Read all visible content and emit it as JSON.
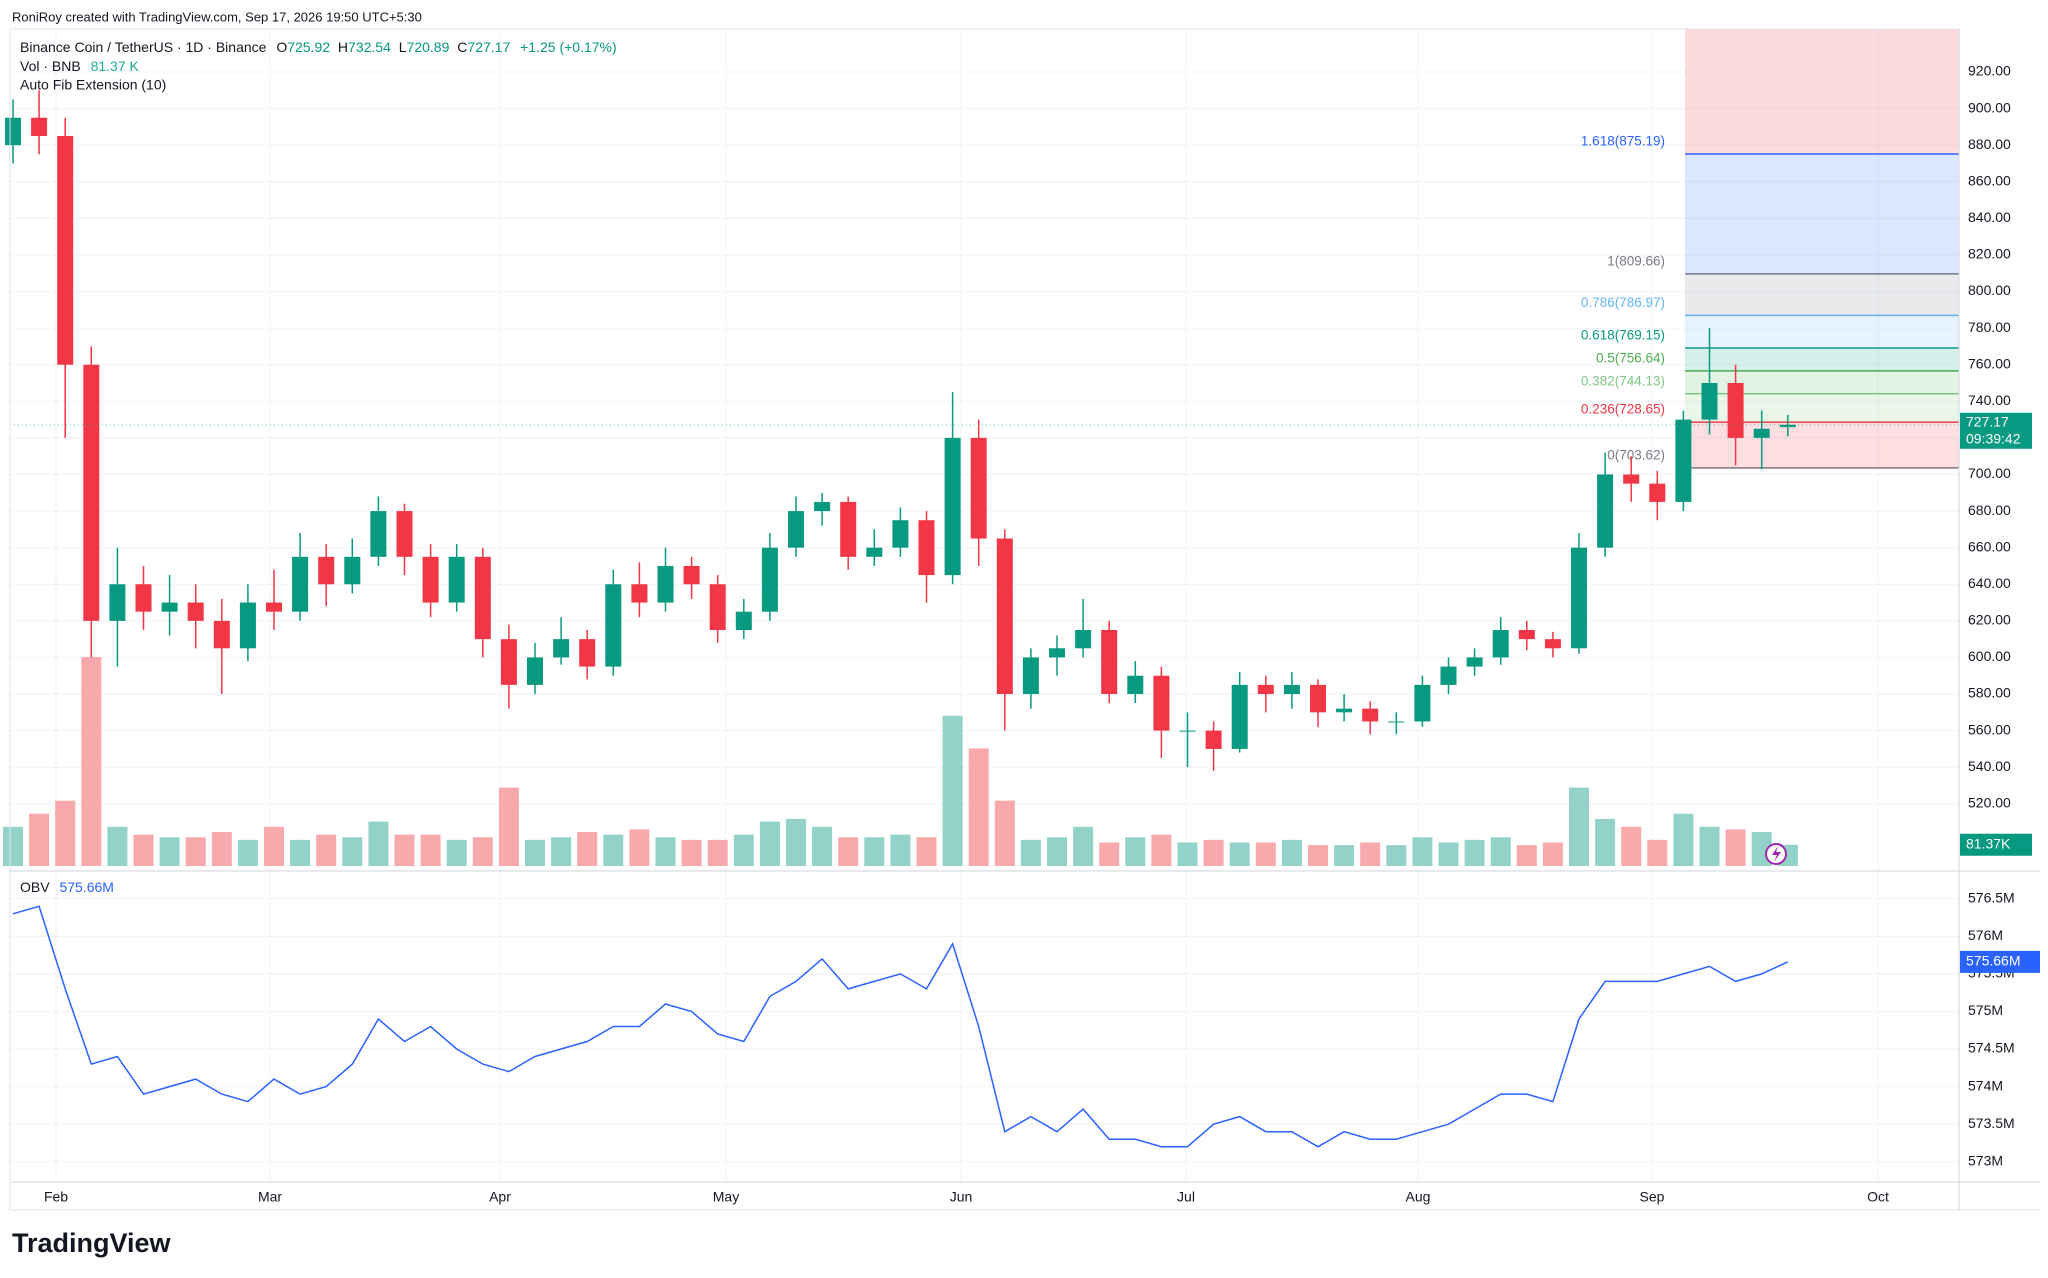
{
  "header": {
    "credit": "RoniRoy created with TradingView.com, Sep 17, 2026 19:50 UTC+5:30",
    "symbol": "Binance Coin / TetherUS · 1D · Binance",
    "o_label": "O",
    "open": 725.92,
    "h_label": "H",
    "high": 732.54,
    "l_label": "L",
    "low": 720.89,
    "c_label": "C",
    "close": 727.17,
    "change": "+1.25 (+0.17%)",
    "vol_name": "Vol · BNB",
    "vol_value": "81.37 K",
    "fib_name": "Auto Fib Extension (10)"
  },
  "footer": {
    "logo": "TradingView"
  },
  "chart_data": [
    {
      "type": "candlestick",
      "up_color": "#089981",
      "down_color": "#f23645",
      "volume_up_color": "#92d2c8",
      "volume_down_color": "#f7a9ac",
      "ylim": [
        486,
        943.5
      ],
      "yticks": [
        {
          "value": 520,
          "label": "520.00"
        },
        {
          "value": 540,
          "label": "540.00"
        },
        {
          "value": 560,
          "label": "560.00"
        },
        {
          "value": 580,
          "label": "580.00"
        },
        {
          "value": 600,
          "label": "600.00"
        },
        {
          "value": 620,
          "label": "620.00"
        },
        {
          "value": 640,
          "label": "640.00"
        },
        {
          "value": 660,
          "label": "660.00"
        },
        {
          "value": 680,
          "label": "680.00"
        },
        {
          "value": 700,
          "label": "700.00"
        },
        {
          "value": 720,
          "label": "720.00"
        },
        {
          "value": 740,
          "label": "740.00"
        },
        {
          "value": 760,
          "label": "760.00"
        },
        {
          "value": 780,
          "label": "780.00"
        },
        {
          "value": 800,
          "label": "800.00"
        },
        {
          "value": 820,
          "label": "820.00"
        },
        {
          "value": 840,
          "label": "840.00"
        },
        {
          "value": 860,
          "label": "860.00"
        },
        {
          "value": 880,
          "label": "880.00"
        },
        {
          "value": 900,
          "label": "900.00"
        },
        {
          "value": 920,
          "label": "920.00"
        }
      ],
      "grid": true,
      "time_labels": [
        "Feb",
        "Mar",
        "Apr",
        "May",
        "Jun",
        "Jul",
        "Aug",
        "Sep",
        "Oct"
      ],
      "candles": [
        [
          880,
          905,
          870,
          895
        ],
        [
          895,
          910,
          875,
          885
        ],
        [
          885,
          895,
          720,
          760
        ],
        [
          760,
          770,
          600,
          620
        ],
        [
          620,
          660,
          595,
          640
        ],
        [
          640,
          650,
          615,
          625
        ],
        [
          625,
          645,
          612,
          630
        ],
        [
          630,
          640,
          605,
          620
        ],
        [
          620,
          632,
          580,
          605
        ],
        [
          605,
          640,
          598,
          630
        ],
        [
          630,
          648,
          615,
          625
        ],
        [
          625,
          668,
          620,
          655
        ],
        [
          655,
          662,
          628,
          640
        ],
        [
          640,
          665,
          635,
          655
        ],
        [
          655,
          688,
          650,
          680
        ],
        [
          680,
          684,
          645,
          655
        ],
        [
          655,
          662,
          622,
          630
        ],
        [
          630,
          662,
          625,
          655
        ],
        [
          655,
          660,
          600,
          610
        ],
        [
          610,
          618,
          572,
          585
        ],
        [
          585,
          608,
          580,
          600
        ],
        [
          600,
          622,
          596,
          610
        ],
        [
          610,
          615,
          588,
          595
        ],
        [
          595,
          648,
          590,
          640
        ],
        [
          640,
          652,
          622,
          630
        ],
        [
          630,
          660,
          625,
          650
        ],
        [
          650,
          655,
          632,
          640
        ],
        [
          640,
          645,
          608,
          615
        ],
        [
          615,
          632,
          610,
          625
        ],
        [
          625,
          668,
          620,
          660
        ],
        [
          660,
          688,
          655,
          680
        ],
        [
          680,
          690,
          672,
          685
        ],
        [
          685,
          688,
          648,
          655
        ],
        [
          655,
          670,
          650,
          660
        ],
        [
          660,
          682,
          655,
          675
        ],
        [
          675,
          680,
          630,
          645
        ],
        [
          645,
          745,
          640,
          720
        ],
        [
          720,
          730,
          650,
          665
        ],
        [
          665,
          670,
          560,
          580
        ],
        [
          580,
          605,
          572,
          600
        ],
        [
          600,
          612,
          590,
          605
        ],
        [
          605,
          632,
          600,
          615
        ],
        [
          615,
          620,
          575,
          580
        ],
        [
          580,
          598,
          575,
          590
        ],
        [
          590,
          595,
          545,
          560
        ],
        [
          560,
          570,
          540,
          560
        ],
        [
          560,
          565,
          538,
          550
        ],
        [
          550,
          592,
          548,
          585
        ],
        [
          585,
          590,
          570,
          580
        ],
        [
          580,
          592,
          572,
          585
        ],
        [
          585,
          588,
          562,
          570
        ],
        [
          570,
          580,
          565,
          572
        ],
        [
          572,
          576,
          558,
          565
        ],
        [
          565,
          570,
          558,
          565
        ],
        [
          565,
          590,
          562,
          585
        ],
        [
          585,
          600,
          580,
          595
        ],
        [
          595,
          605,
          590,
          600
        ],
        [
          600,
          622,
          596,
          615
        ],
        [
          615,
          620,
          604,
          610
        ],
        [
          610,
          614,
          600,
          605
        ],
        [
          605,
          668,
          602,
          660
        ],
        [
          660,
          712,
          655,
          700
        ],
        [
          700,
          710,
          685,
          695
        ],
        [
          695,
          702,
          675,
          685
        ],
        [
          685,
          735,
          680,
          730
        ],
        [
          730,
          780,
          722,
          750
        ],
        [
          750,
          760,
          705,
          720
        ],
        [
          720,
          735,
          703,
          725
        ],
        [
          725.92,
          732.54,
          720.89,
          727.17
        ]
      ],
      "volume_ylim": [
        0,
        800
      ],
      "volume": [
        150,
        200,
        250,
        800,
        150,
        120,
        110,
        110,
        130,
        100,
        150,
        100,
        120,
        110,
        170,
        120,
        120,
        100,
        110,
        300,
        100,
        110,
        130,
        120,
        140,
        110,
        100,
        100,
        120,
        170,
        180,
        150,
        110,
        110,
        120,
        110,
        575,
        450,
        250,
        100,
        110,
        150,
        90,
        110,
        120,
        90,
        100,
        90,
        90,
        100,
        80,
        80,
        90,
        80,
        110,
        90,
        100,
        110,
        80,
        90,
        300,
        180,
        150,
        100,
        200,
        150,
        140,
        130,
        81.37
      ],
      "volume_last_label": "81.37K",
      "last_price": 727.17,
      "countdown": "09:39:42",
      "last_price_color": "#089981",
      "fib_levels": [
        {
          "label": "0(703.62)",
          "price": 703.62,
          "color": "#787b86"
        },
        {
          "label": "0.236(728.65)",
          "price": 728.65,
          "color": "#f23645"
        },
        {
          "label": "0.382(744.13)",
          "price": 744.13,
          "color": "#81c784"
        },
        {
          "label": "0.5(756.64)",
          "price": 756.64,
          "color": "#4caf50"
        },
        {
          "label": "0.618(769.15)",
          "price": 769.15,
          "color": "#089981"
        },
        {
          "label": "0.786(786.97)",
          "price": 786.97,
          "color": "#64b5f6"
        },
        {
          "label": "1(809.66)",
          "price": 809.66,
          "color": "#787b86"
        },
        {
          "label": "1.618(875.19)",
          "price": 875.19,
          "color": "#2962ff"
        }
      ]
    },
    {
      "type": "line",
      "name": "OBV",
      "last_label": "575.66M",
      "color": "#2962ff",
      "ylim": [
        572.73,
        576.71
      ],
      "yticks": [
        {
          "value": 573,
          "label": "573M"
        },
        {
          "value": 573.5,
          "label": "573.5M"
        },
        {
          "value": 574,
          "label": "574M"
        },
        {
          "value": 574.5,
          "label": "574.5M"
        },
        {
          "value": 575,
          "label": "575M"
        },
        {
          "value": 575.5,
          "label": "575.5M"
        },
        {
          "value": 576,
          "label": "576M"
        },
        {
          "value": 576.5,
          "label": "576.5M"
        }
      ],
      "values": [
        576.3,
        576.4,
        575.3,
        574.3,
        574.4,
        573.9,
        574.0,
        574.1,
        573.9,
        573.8,
        574.1,
        573.9,
        574.0,
        574.3,
        574.9,
        574.6,
        574.8,
        574.5,
        574.3,
        574.2,
        574.4,
        574.5,
        574.6,
        574.8,
        574.8,
        575.1,
        575.0,
        574.7,
        574.6,
        575.2,
        575.4,
        575.7,
        575.3,
        575.4,
        575.5,
        575.3,
        575.9,
        574.8,
        573.4,
        573.6,
        573.4,
        573.7,
        573.3,
        573.3,
        573.2,
        573.2,
        573.5,
        573.6,
        573.4,
        573.4,
        573.2,
        573.4,
        573.3,
        573.3,
        573.4,
        573.5,
        573.7,
        573.9,
        573.9,
        573.8,
        574.9,
        575.4,
        575.4,
        575.4,
        575.5,
        575.6,
        575.4,
        575.5,
        575.66
      ]
    }
  ]
}
